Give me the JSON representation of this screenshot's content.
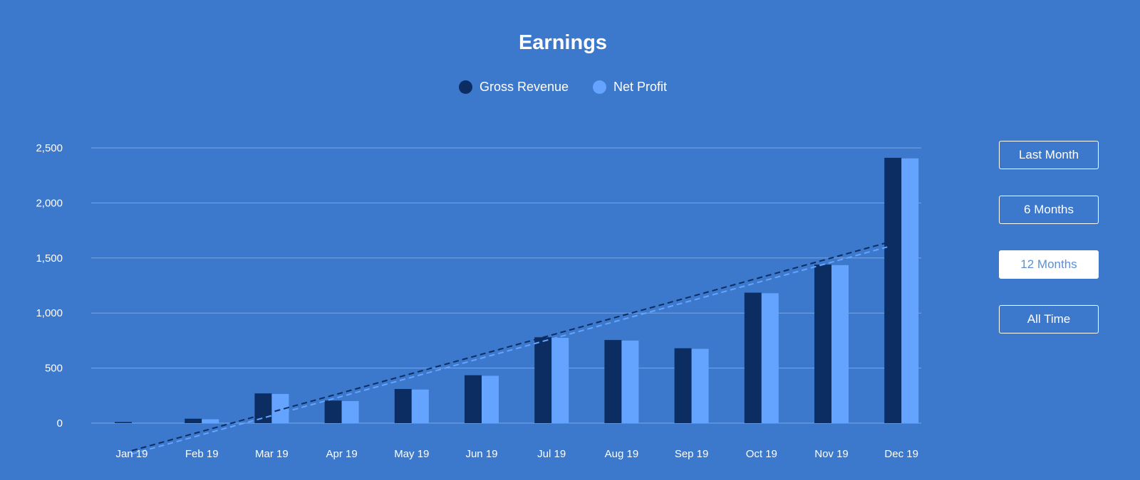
{
  "chart_data": {
    "type": "bar",
    "title": "Earnings",
    "categories": [
      "Jan 19",
      "Feb 19",
      "Mar 19",
      "Apr 19",
      "May 19",
      "Jun 19",
      "Jul 19",
      "Aug 19",
      "Sep 19",
      "Oct 19",
      "Nov 19",
      "Dec 19"
    ],
    "series": [
      {
        "name": "Gross Revenue",
        "color": "#0b2d62",
        "values": [
          10,
          40,
          270,
          205,
          310,
          435,
          780,
          755,
          680,
          1185,
          1440,
          2410
        ]
      },
      {
        "name": "Net Profit",
        "color": "#64a4ff",
        "values": [
          0,
          35,
          265,
          200,
          305,
          430,
          775,
          750,
          675,
          1180,
          1435,
          2405
        ]
      }
    ],
    "trendlines": [
      {
        "series": "Gross Revenue",
        "color": "#0b2d62",
        "style": "dashed",
        "start": -250,
        "end": 1640
      },
      {
        "series": "Net Profit",
        "color": "#64a4ff",
        "style": "dashed",
        "start": -280,
        "end": 1600
      }
    ],
    "ylim": [
      0,
      2500
    ],
    "yticks": [
      0,
      500,
      1000,
      1500,
      2000,
      2500
    ],
    "ytick_labels": [
      "0",
      "500",
      "1,000",
      "1,500",
      "2,000",
      "2,500"
    ],
    "xlabel": "",
    "ylabel": "",
    "grid": true,
    "legend_position": "top-center"
  },
  "range_buttons": [
    {
      "label": "Last Month",
      "active": false
    },
    {
      "label": "6 Months",
      "active": false
    },
    {
      "label": "12 Months",
      "active": true
    },
    {
      "label": "All Time",
      "active": false
    }
  ]
}
